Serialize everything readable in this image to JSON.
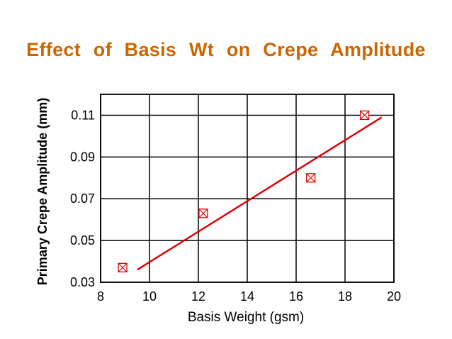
{
  "title": "Effect of Basis Wt on Crepe Amplitude",
  "colors": {
    "title": "#cc6600",
    "series": "#e00000",
    "grid": "#000000"
  },
  "chart_data": {
    "type": "scatter",
    "title": "Effect of Basis Wt on Crepe Amplitude",
    "xlabel": "Basis Weight (gsm)",
    "ylabel": "Primary Crepe Amplitude (mm)",
    "xlim": [
      8,
      20
    ],
    "ylim": [
      0.03,
      0.12
    ],
    "x_ticks": [
      8,
      10,
      12,
      14,
      16,
      18,
      20
    ],
    "y_ticks": [
      0.03,
      0.05,
      0.07,
      0.09,
      0.11
    ],
    "grid": true,
    "marker": "boxed-x",
    "points": [
      {
        "x": 8.9,
        "y": 0.037
      },
      {
        "x": 12.2,
        "y": 0.063
      },
      {
        "x": 16.6,
        "y": 0.08
      },
      {
        "x": 18.8,
        "y": 0.11
      }
    ],
    "trendline": {
      "type": "linear",
      "x": [
        9.5,
        19.5
      ],
      "y": [
        0.036,
        0.109
      ]
    }
  }
}
